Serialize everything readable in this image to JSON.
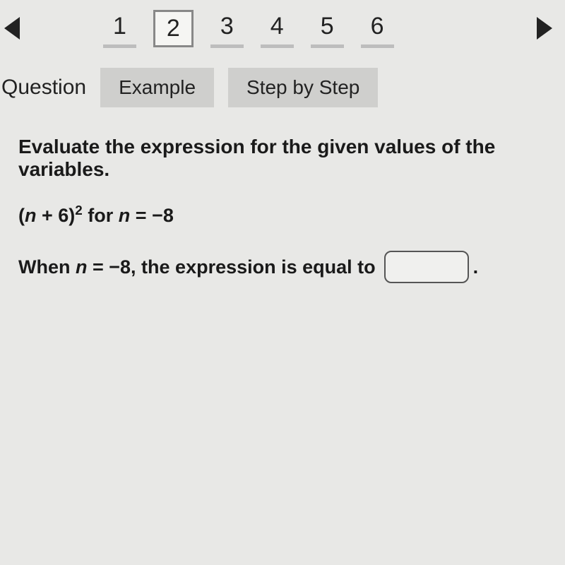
{
  "pagination": {
    "pages": [
      "1",
      "2",
      "3",
      "4",
      "5",
      "6"
    ],
    "active_index": 1
  },
  "tabs": {
    "question_label": "Question",
    "example_label": "Example",
    "step_label": "Step by Step"
  },
  "problem": {
    "instruction": "Evaluate the expression for the given values of the variables.",
    "expr_open": "(",
    "expr_var": "n",
    "expr_plus": " + 6)",
    "expr_exp": "2",
    "expr_for": " for ",
    "expr_cond_var": "n",
    "expr_cond_eq": " = −8",
    "answer_prefix": "When ",
    "answer_var": "n",
    "answer_eq": " = −8, the expression is equal to ",
    "answer_period": ".",
    "answer_value": ""
  }
}
